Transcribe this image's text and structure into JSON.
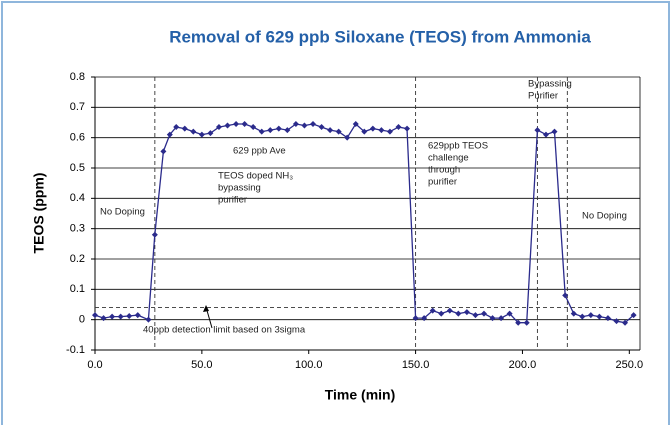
{
  "chart_data": {
    "type": "line",
    "title": "Removal of 629 ppb Siloxane (TEOS) from Ammonia",
    "x_label": "Time (min)",
    "y_label": "TEOS (ppm)",
    "xlim": [
      0,
      255
    ],
    "ylim": [
      -0.1,
      0.8
    ],
    "xticks": [
      {
        "value": 0,
        "label": "0.0"
      },
      {
        "value": 50,
        "label": "50.0"
      },
      {
        "value": 100,
        "label": "100.0"
      },
      {
        "value": 150,
        "label": "150.0"
      },
      {
        "value": 200,
        "label": "200.0"
      },
      {
        "value": 250,
        "label": "250.0"
      }
    ],
    "yticks": [
      -0.1,
      0,
      0.1,
      0.2,
      0.3,
      0.4,
      0.5,
      0.6,
      0.7,
      0.8
    ],
    "grid": true,
    "reference_lines": {
      "x": [
        28,
        150,
        207,
        221
      ],
      "y": 0.04
    },
    "series": [
      {
        "color": "#2b2b8c",
        "x": [
          0,
          4,
          8,
          12,
          16,
          20,
          25,
          28,
          32,
          35,
          38,
          42,
          46,
          50,
          54,
          58,
          62,
          66,
          70,
          74,
          78,
          82,
          86,
          90,
          94,
          98,
          102,
          106,
          110,
          114,
          118,
          122,
          126,
          130,
          134,
          138,
          142,
          146,
          150,
          154,
          158,
          162,
          166,
          170,
          174,
          178,
          182,
          186,
          190,
          194,
          198,
          202,
          207,
          211,
          215,
          220,
          224,
          228,
          232,
          236,
          240,
          244,
          248,
          252
        ],
        "values": [
          0.015,
          0.005,
          0.01,
          0.01,
          0.012,
          0.015,
          0,
          0.28,
          0.555,
          0.61,
          0.635,
          0.63,
          0.62,
          0.61,
          0.615,
          0.635,
          0.64,
          0.645,
          0.645,
          0.635,
          0.62,
          0.625,
          0.63,
          0.625,
          0.645,
          0.64,
          0.645,
          0.635,
          0.625,
          0.62,
          0.6,
          0.645,
          0.62,
          0.63,
          0.625,
          0.62,
          0.635,
          0.63,
          0.005,
          0.005,
          0.03,
          0.02,
          0.03,
          0.02,
          0.025,
          0.015,
          0.02,
          0.005,
          0.005,
          0.02,
          -0.01,
          -0.01,
          0.625,
          0.61,
          0.62,
          0.08,
          0.02,
          0.01,
          0.015,
          0.01,
          0.005,
          -0.005,
          -0.01,
          0.015
        ]
      }
    ],
    "annotations": [
      {
        "lines": [
          "No Doping"
        ]
      },
      {
        "lines": [
          "629 ppb Ave"
        ]
      },
      {
        "lines": [
          "TEOS doped NH₃",
          "bypassing",
          "purifier"
        ]
      },
      {
        "lines": [
          "629ppb TEOS",
          "challenge",
          "through",
          "purifier"
        ]
      },
      {
        "lines": [
          "Bypassing",
          "Purifier"
        ]
      },
      {
        "lines": [
          "No Doping"
        ]
      },
      {
        "lines": [
          "40ppb detection limit based on 3sigma"
        ]
      }
    ]
  }
}
